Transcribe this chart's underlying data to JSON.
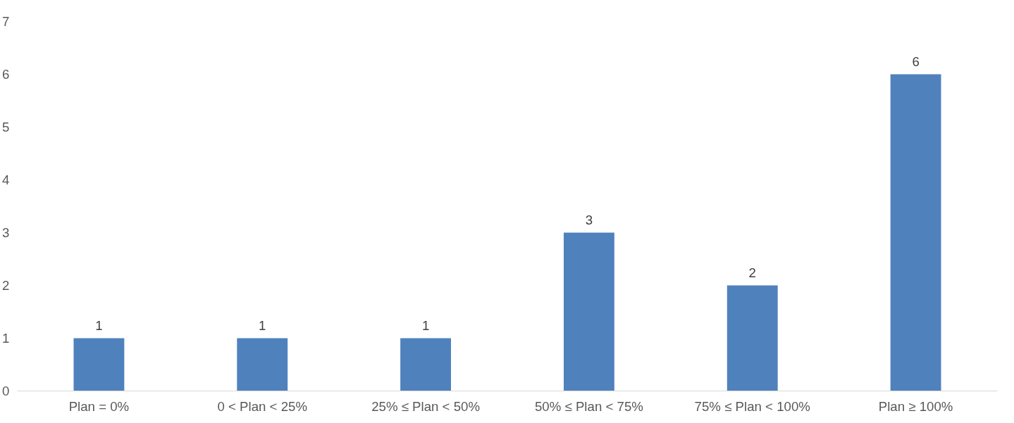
{
  "chart_data": {
    "type": "bar",
    "categories": [
      "Plan = 0%",
      "0 < Plan < 25%",
      "25% ≤ Plan < 50%",
      "50% ≤ Plan < 75%",
      "75% ≤ Plan < 100%",
      "Plan ≥ 100%"
    ],
    "values": [
      1,
      1,
      1,
      3,
      2,
      6
    ],
    "color": "#4f81bd",
    "ylim": [
      0,
      7
    ],
    "yticks": [
      0,
      1,
      2,
      3,
      4,
      5,
      6,
      7
    ],
    "data_labels": true,
    "grid": false
  }
}
